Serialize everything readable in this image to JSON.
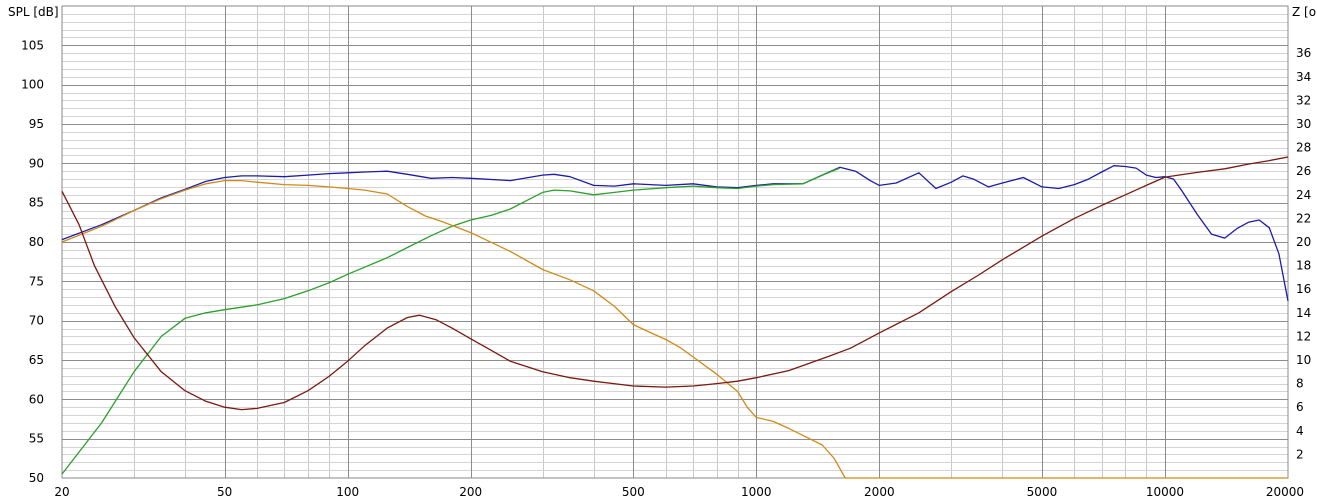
{
  "chart_data": {
    "type": "line",
    "left_axis_label": "SPL [dB]",
    "right_axis_label": "Z [o",
    "x_scale": "log",
    "xlim": [
      20,
      20000
    ],
    "ylim_left": [
      50,
      110
    ],
    "ylim_right": [
      0,
      40
    ],
    "x_tick_labels": [
      "20",
      "50",
      "100",
      "200",
      "500",
      "1000",
      "2000",
      "5000",
      "10000",
      "20000"
    ],
    "y_left_tick_labels": [
      "50",
      "55",
      "60",
      "65",
      "70",
      "75",
      "80",
      "85",
      "90",
      "95",
      "100",
      "105"
    ],
    "y_right_tick_labels": [
      "2",
      "4",
      "6",
      "8",
      "10",
      "12",
      "14",
      "16",
      "18",
      "20",
      "22",
      "24",
      "26",
      "28",
      "30",
      "32",
      "34",
      "36"
    ],
    "grid": true,
    "legend": "none",
    "series": [
      {
        "axis": "left",
        "color": "#1c1ca8",
        "points": [
          [
            20,
            80.3
          ],
          [
            25,
            82.2
          ],
          [
            30,
            84.0
          ],
          [
            35,
            85.6
          ],
          [
            40,
            86.7
          ],
          [
            45,
            87.7
          ],
          [
            50,
            88.2
          ],
          [
            55,
            88.4
          ],
          [
            60,
            88.4
          ],
          [
            70,
            88.3
          ],
          [
            80,
            88.5
          ],
          [
            90,
            88.7
          ],
          [
            100,
            88.8
          ],
          [
            110,
            88.9
          ],
          [
            125,
            89.0
          ],
          [
            140,
            88.6
          ],
          [
            160,
            88.1
          ],
          [
            180,
            88.2
          ],
          [
            200,
            88.1
          ],
          [
            250,
            87.8
          ],
          [
            300,
            88.5
          ],
          [
            320,
            88.6
          ],
          [
            350,
            88.3
          ],
          [
            400,
            87.2
          ],
          [
            450,
            87.1
          ],
          [
            500,
            87.4
          ],
          [
            600,
            87.2
          ],
          [
            700,
            87.4
          ],
          [
            800,
            87.0
          ],
          [
            900,
            86.9
          ],
          [
            1000,
            87.2
          ],
          [
            1100,
            87.4
          ],
          [
            1300,
            87.4
          ],
          [
            1450,
            88.5
          ],
          [
            1600,
            89.5
          ],
          [
            1750,
            89.0
          ],
          [
            1900,
            87.8
          ],
          [
            2000,
            87.2
          ],
          [
            2200,
            87.5
          ],
          [
            2500,
            88.8
          ],
          [
            2750,
            86.8
          ],
          [
            3000,
            87.6
          ],
          [
            3200,
            88.4
          ],
          [
            3400,
            88.0
          ],
          [
            3700,
            87.0
          ],
          [
            4000,
            87.5
          ],
          [
            4500,
            88.2
          ],
          [
            5000,
            87.0
          ],
          [
            5500,
            86.8
          ],
          [
            6000,
            87.3
          ],
          [
            6500,
            88.0
          ],
          [
            7000,
            88.9
          ],
          [
            7500,
            89.7
          ],
          [
            8000,
            89.6
          ],
          [
            8500,
            89.4
          ],
          [
            9000,
            88.5
          ],
          [
            9500,
            88.2
          ],
          [
            10000,
            88.3
          ],
          [
            10500,
            88.0
          ],
          [
            11000,
            86.5
          ],
          [
            12000,
            83.5
          ],
          [
            13000,
            81.0
          ],
          [
            14000,
            80.5
          ],
          [
            15000,
            81.7
          ],
          [
            16000,
            82.5
          ],
          [
            17000,
            82.8
          ],
          [
            18000,
            81.8
          ],
          [
            19000,
            78.5
          ],
          [
            20000,
            72.5
          ]
        ]
      },
      {
        "axis": "left",
        "color": "#2aa02a",
        "points": [
          [
            20,
            50.5
          ],
          [
            25,
            57.0
          ],
          [
            30,
            63.5
          ],
          [
            35,
            68.0
          ],
          [
            40,
            70.3
          ],
          [
            45,
            71.0
          ],
          [
            50,
            71.4
          ],
          [
            60,
            72.0
          ],
          [
            70,
            72.8
          ],
          [
            80,
            73.8
          ],
          [
            90,
            74.8
          ],
          [
            100,
            75.9
          ],
          [
            110,
            76.8
          ],
          [
            125,
            78.0
          ],
          [
            140,
            79.3
          ],
          [
            160,
            80.8
          ],
          [
            180,
            82.0
          ],
          [
            200,
            82.8
          ],
          [
            225,
            83.4
          ],
          [
            250,
            84.2
          ],
          [
            275,
            85.3
          ],
          [
            300,
            86.3
          ],
          [
            320,
            86.6
          ],
          [
            350,
            86.5
          ],
          [
            400,
            86.0
          ],
          [
            450,
            86.3
          ],
          [
            500,
            86.6
          ],
          [
            600,
            86.9
          ],
          [
            700,
            87.1
          ],
          [
            800,
            86.9
          ],
          [
            900,
            86.8
          ],
          [
            1000,
            87.1
          ],
          [
            1100,
            87.3
          ],
          [
            1300,
            87.4
          ],
          [
            1450,
            88.5
          ],
          [
            1600,
            89.4
          ]
        ]
      },
      {
        "axis": "left",
        "color": "#d08a18",
        "points": [
          [
            20,
            80.0
          ],
          [
            25,
            82.0
          ],
          [
            30,
            84.0
          ],
          [
            35,
            85.5
          ],
          [
            40,
            86.6
          ],
          [
            45,
            87.4
          ],
          [
            50,
            87.8
          ],
          [
            55,
            87.8
          ],
          [
            60,
            87.6
          ],
          [
            70,
            87.3
          ],
          [
            80,
            87.2
          ],
          [
            90,
            87.0
          ],
          [
            100,
            86.8
          ],
          [
            110,
            86.6
          ],
          [
            125,
            86.1
          ],
          [
            140,
            84.5
          ],
          [
            155,
            83.3
          ],
          [
            170,
            82.6
          ],
          [
            200,
            81.2
          ],
          [
            250,
            78.8
          ],
          [
            300,
            76.5
          ],
          [
            350,
            75.2
          ],
          [
            400,
            73.8
          ],
          [
            450,
            71.8
          ],
          [
            500,
            69.5
          ],
          [
            550,
            68.5
          ],
          [
            600,
            67.6
          ],
          [
            650,
            66.6
          ],
          [
            700,
            65.4
          ],
          [
            800,
            63.2
          ],
          [
            900,
            61.0
          ],
          [
            950,
            59.0
          ],
          [
            1000,
            57.7
          ],
          [
            1100,
            57.2
          ],
          [
            1200,
            56.3
          ],
          [
            1350,
            55.0
          ],
          [
            1450,
            54.2
          ],
          [
            1550,
            52.5
          ],
          [
            1650,
            50.0
          ]
        ]
      },
      {
        "axis": "right",
        "color": "#7a1a0e",
        "points": [
          [
            20,
            24.3
          ],
          [
            22,
            21.5
          ],
          [
            24,
            18.0
          ],
          [
            27,
            14.5
          ],
          [
            30,
            11.9
          ],
          [
            35,
            9.0
          ],
          [
            40,
            7.4
          ],
          [
            45,
            6.5
          ],
          [
            50,
            6.0
          ],
          [
            55,
            5.8
          ],
          [
            60,
            5.9
          ],
          [
            70,
            6.4
          ],
          [
            80,
            7.4
          ],
          [
            90,
            8.6
          ],
          [
            100,
            9.9
          ],
          [
            110,
            11.2
          ],
          [
            125,
            12.7
          ],
          [
            140,
            13.6
          ],
          [
            150,
            13.8
          ],
          [
            165,
            13.4
          ],
          [
            180,
            12.7
          ],
          [
            200,
            11.8
          ],
          [
            225,
            10.8
          ],
          [
            250,
            9.9
          ],
          [
            300,
            9.0
          ],
          [
            350,
            8.5
          ],
          [
            400,
            8.2
          ],
          [
            500,
            7.8
          ],
          [
            600,
            7.7
          ],
          [
            700,
            7.8
          ],
          [
            800,
            8.0
          ],
          [
            900,
            8.2
          ],
          [
            1000,
            8.5
          ],
          [
            1200,
            9.1
          ],
          [
            1500,
            10.3
          ],
          [
            1700,
            11.0
          ],
          [
            2000,
            12.3
          ],
          [
            2500,
            14.0
          ],
          [
            3000,
            15.8
          ],
          [
            3500,
            17.2
          ],
          [
            4000,
            18.5
          ],
          [
            5000,
            20.5
          ],
          [
            6000,
            22.0
          ],
          [
            7000,
            23.1
          ],
          [
            8000,
            24.0
          ],
          [
            9000,
            24.8
          ],
          [
            10000,
            25.5
          ],
          [
            12000,
            25.9
          ],
          [
            14000,
            26.2
          ],
          [
            16000,
            26.6
          ],
          [
            18000,
            26.9
          ],
          [
            20000,
            27.2
          ]
        ]
      },
      {
        "axis": "right",
        "color": "#d08a18",
        "points": [
          [
            1650,
            0
          ],
          [
            20000,
            0
          ]
        ]
      }
    ]
  }
}
